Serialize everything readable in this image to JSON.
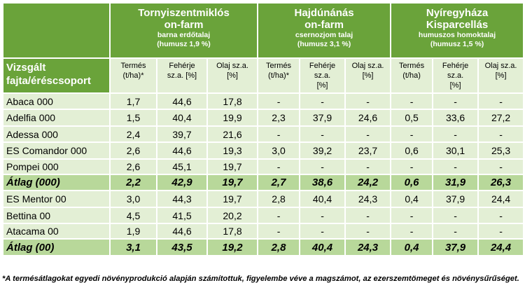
{
  "locations": [
    {
      "line1": "Tornyiszentmiklós",
      "line2": "on-farm",
      "line3": "barna erdőtalaj",
      "line4": "(humusz 1,9 %)"
    },
    {
      "line1": "Hajdúnánás",
      "line2": "on-farm",
      "line3": "csernozjom talaj",
      "line4": "(humusz 3,1 %)"
    },
    {
      "line1": "Nyíregyháza",
      "line2": "Kisparcellás",
      "line3": "humuszos homoktalaj",
      "line4": "(humusz 1,5 %)"
    }
  ],
  "row_header": {
    "line1": "Vizsgált",
    "line2": "fajta/éréscsoport"
  },
  "column_groups": [
    [
      {
        "line1": "Termés",
        "line2": "(t/ha)*"
      },
      {
        "line1": "Fehérje",
        "line2": "sz.a. [%]"
      },
      {
        "line1": "Olaj sz.a.",
        "line2": "[%]"
      }
    ],
    [
      {
        "line1": "Termés",
        "line2": "(t/ha)*"
      },
      {
        "line1": "Fehérje",
        "line2": "sz.a.",
        "line3": "[%]"
      },
      {
        "line1": "Olaj sz.a.",
        "line2": "[%]"
      }
    ],
    [
      {
        "line1": "Termés",
        "line2": "(t/ha)"
      },
      {
        "line1": "Fehérje",
        "line2": "sz.a.",
        "line3": "[%]"
      },
      {
        "line1": "Olaj sz.a.",
        "line2": "[%]"
      }
    ]
  ],
  "rows": [
    {
      "name": "Abaca 000",
      "avg": false,
      "values": [
        "1,7",
        "44,6",
        "17,8",
        "-",
        "-",
        "-",
        "-",
        "-",
        "-"
      ]
    },
    {
      "name": "Adelfia 000",
      "avg": false,
      "values": [
        "1,5",
        "40,4",
        "19,9",
        "2,3",
        "37,9",
        "24,6",
        "0,5",
        "33,6",
        "27,2"
      ]
    },
    {
      "name": "Adessa 000",
      "avg": false,
      "values": [
        "2,4",
        "39,7",
        "21,6",
        "-",
        "-",
        "-",
        "-",
        "-",
        "-"
      ]
    },
    {
      "name": "ES Comandor 000",
      "avg": false,
      "values": [
        "2,6",
        "44,6",
        "19,3",
        "3,0",
        "39,2",
        "23,7",
        "0,6",
        "30,1",
        "25,3"
      ]
    },
    {
      "name": "Pompei 000",
      "avg": false,
      "values": [
        "2,6",
        "45,1",
        "19,7",
        "-",
        "-",
        "-",
        "-",
        "-",
        "-"
      ]
    },
    {
      "name": "Átlag (000)",
      "avg": true,
      "values": [
        "2,2",
        "42,9",
        "19,7",
        "2,7",
        "38,6",
        "24,2",
        "0,6",
        "31,9",
        "26,3"
      ]
    },
    {
      "name": "ES Mentor 00",
      "avg": false,
      "values": [
        "3,0",
        "44,3",
        "19,7",
        "2,8",
        "40,4",
        "24,3",
        "0,4",
        "37,9",
        "24,4"
      ]
    },
    {
      "name": "Bettina 00",
      "avg": false,
      "values": [
        "4,5",
        "41,5",
        "20,2",
        "-",
        "-",
        "-",
        "-",
        "-",
        "-"
      ]
    },
    {
      "name": "Atacama 00",
      "avg": false,
      "values": [
        "1,9",
        "44,6",
        "17,8",
        "-",
        "-",
        "-",
        "-",
        "-",
        "-"
      ]
    },
    {
      "name": "Átlag (00)",
      "avg": true,
      "values": [
        "3,1",
        "43,5",
        "19,2",
        "2,8",
        "40,4",
        "24,3",
        "0,4",
        "37,9",
        "24,4"
      ]
    }
  ],
  "footnote": "*A termésátlagokat egyedi növényprodukció alapján számítottuk, figyelembe véve a magszámot, az ezerszemtömeget és növénysűrűséget."
}
